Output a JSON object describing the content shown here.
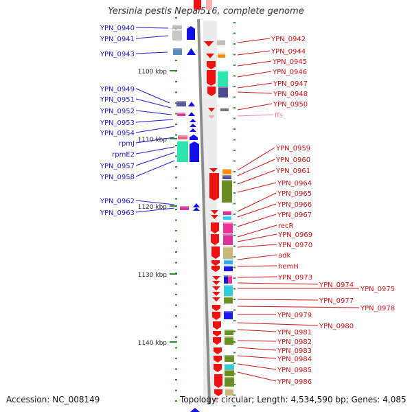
{
  "title": "Yersinia pestis Nepal516, complete genome",
  "footer": {
    "accession": "Accession: NC_008149",
    "topology": "Topology: circular; Length: 4,534,590 bp; Genes: 4,085"
  },
  "colors": {
    "backbone": "#8c8c8c",
    "left_label": "#1a1acc",
    "right_label": "#cc1111",
    "pseudo_label": "#f080a0",
    "ticks": "#2e8b2e",
    "forward_gene": "#1010e0",
    "reverse_gene": "#ee1111"
  },
  "ticks": [
    {
      "label": "1100 kbp"
    },
    {
      "label": "1110 kbp"
    },
    {
      "label": "1120 kbp"
    },
    {
      "label": "1130 kbp"
    },
    {
      "label": "1140 kbp"
    }
  ],
  "left_genes": [
    "YPN_0940",
    "YPN_0941",
    "YPN_0943",
    "YPN_0949",
    "YPN_0951",
    "YPN_0952",
    "YPN_0953",
    "YPN_0954",
    "rpmJ",
    "rpmE2",
    "YPN_0957",
    "YPN_0958",
    "YPN_0962",
    "YPN_0963"
  ],
  "right_genes": [
    "YPN_0942",
    "YPN_0944",
    "YPN_0945",
    "YPN_0946",
    "YPN_0947",
    "YPN_0948",
    "YPN_0950",
    "ffs",
    "YPN_0959",
    "YPN_0960",
    "YPN_0961",
    "YPN_0964",
    "YPN_0965",
    "YPN_0966",
    "YPN_0967",
    "recR",
    "YPN_0969",
    "YPN_0970",
    "adk",
    "hemH",
    "YPN_0973",
    "YPN_0974",
    "YPN_0975",
    "YPN_0977",
    "YPN_0978",
    "YPN_0979",
    "YPN_0980",
    "YPN_0981",
    "YPN_0982",
    "YPN_0983",
    "YPN_0984",
    "YPN_0985",
    "YPN_0986"
  ]
}
